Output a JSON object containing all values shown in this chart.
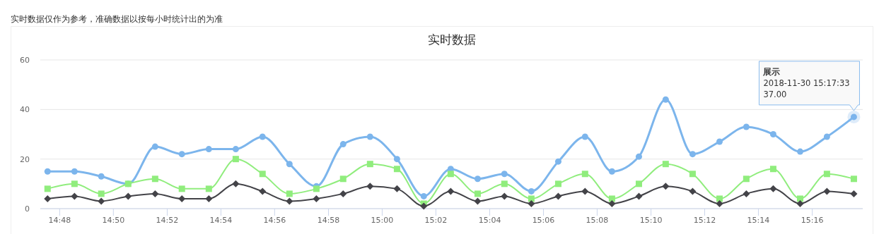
{
  "chart_data": {
    "type": "line",
    "title": "实时数据",
    "subtitle": "实时数据仅作为参考，准确数据以按每小时统计出的为准",
    "x": [
      14.7925,
      14.8092,
      14.8258,
      14.8425,
      14.8592,
      14.8758,
      14.8925,
      14.9092,
      14.9258,
      14.9425,
      14.9592,
      14.9758,
      14.9925,
      15.0092,
      15.0258,
      15.0425,
      15.0592,
      15.0758,
      15.0925,
      15.1092,
      15.1258,
      15.1425,
      15.1592,
      15.1758,
      15.1925,
      15.2092,
      15.2258,
      15.2425,
      15.2592,
      15.2758,
      15.2925
    ],
    "series": [
      {
        "color": "#7cb5ec",
        "marker": "circle",
        "values": [
          15,
          15,
          13,
          10,
          25,
          22,
          24,
          24,
          29,
          18,
          9,
          26,
          29,
          20,
          5,
          16,
          12,
          14,
          7,
          19,
          29,
          15,
          21,
          44,
          22,
          27,
          33,
          30,
          23,
          29,
          37
        ]
      },
      {
        "color": "#90ed7d",
        "marker": "square",
        "values": [
          8,
          10,
          6,
          10,
          12,
          8,
          8,
          20,
          14,
          6,
          8,
          12,
          18,
          16,
          2,
          14,
          6,
          10,
          4,
          10,
          14,
          4,
          10,
          18,
          14,
          4,
          12,
          16,
          4,
          14,
          12
        ]
      },
      {
        "color": "#434348",
        "marker": "diamond",
        "values": [
          4,
          5,
          3,
          5,
          6,
          4,
          4,
          10,
          7,
          3,
          4,
          6,
          9,
          8,
          1,
          7,
          3,
          5,
          2,
          5,
          7,
          2,
          5,
          9,
          7,
          2,
          6,
          8,
          2,
          7,
          6
        ]
      }
    ],
    "xlim": [
      14.788,
      15.298
    ],
    "xticks": [
      {
        "value": 14.8,
        "label": "14:48"
      },
      {
        "value": 14.8333,
        "label": "14:50"
      },
      {
        "value": 14.8667,
        "label": "14:52"
      },
      {
        "value": 14.9,
        "label": "14:54"
      },
      {
        "value": 14.9333,
        "label": "14:56"
      },
      {
        "value": 14.9667,
        "label": "14:58"
      },
      {
        "value": 15,
        "label": "15:00"
      },
      {
        "value": 15.0333,
        "label": "15:02"
      },
      {
        "value": 15.0667,
        "label": "15:04"
      },
      {
        "value": 15.1,
        "label": "15:06"
      },
      {
        "value": 15.1333,
        "label": "15:08"
      },
      {
        "value": 15.1667,
        "label": "15:10"
      },
      {
        "value": 15.2,
        "label": "15:12"
      },
      {
        "value": 15.2333,
        "label": "15:14"
      },
      {
        "value": 15.2667,
        "label": "15:16"
      }
    ],
    "ylim": [
      0,
      60
    ],
    "yticks": [
      0,
      20,
      40,
      60
    ],
    "grid": "y",
    "annotations": [
      {
        "text": "展示\n2018-11-30 15:17:33\n37.00",
        "x": 15.2925,
        "y": 37
      }
    ]
  }
}
